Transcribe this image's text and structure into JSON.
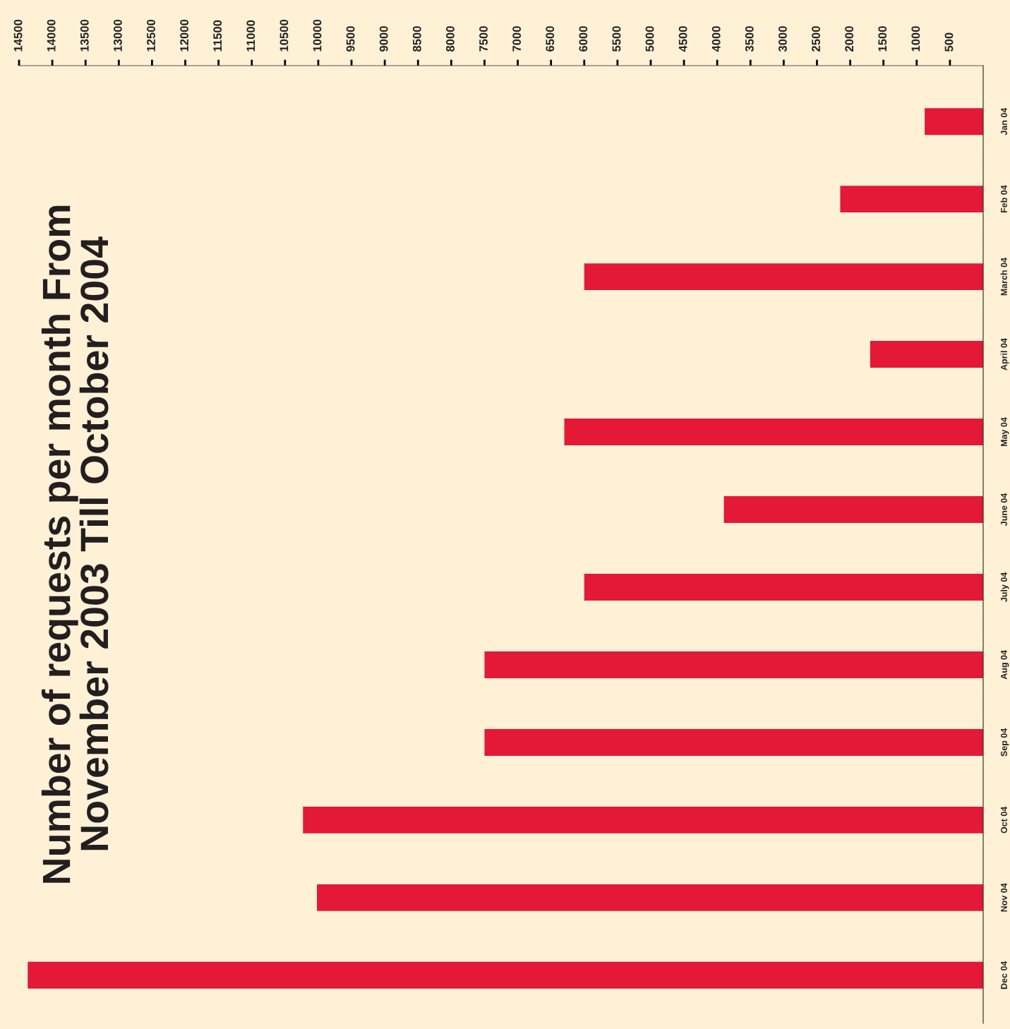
{
  "chart_data": {
    "type": "bar",
    "orientation": "horizontal",
    "title": "Number of requests per month From\nNovember 2003 Till October 2004",
    "categories": [
      "Jan 04",
      "Feb 04",
      "March 04",
      "April 04",
      "May 04",
      "June 04",
      "July 04",
      "Aug 04",
      "Sep 04",
      "Oct 04",
      "Nov 04",
      "Dec 04"
    ],
    "values": [
      880,
      2150,
      6000,
      1700,
      6300,
      3900,
      6000,
      7500,
      7500,
      10230,
      10020,
      14370
    ],
    "color": "#e31937",
    "xlim": [
      14500,
      0
    ],
    "xticks": [
      500,
      1000,
      1500,
      2000,
      2500,
      3000,
      3500,
      4000,
      4500,
      5000,
      5500,
      6000,
      6500,
      7000,
      7500,
      8000,
      8500,
      9000,
      9500,
      10000,
      10500,
      11000,
      11500,
      12000,
      12500,
      13000,
      13500,
      14000,
      14500
    ],
    "grid": false,
    "legend": false
  }
}
